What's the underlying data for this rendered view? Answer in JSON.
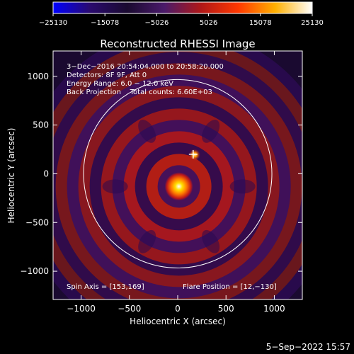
{
  "chart_data": {
    "type": "heatmap",
    "title": "Reconstructed RHESSI Image",
    "xlabel": "Heliocentric X (arcsec)",
    "ylabel": "Heliocentric Y (arcsec)",
    "xlim": [
      -1290,
      1290
    ],
    "ylim": [
      -1290,
      1260
    ],
    "x_ticks": [
      -1000,
      -500,
      0,
      500,
      1000
    ],
    "x_tick_labels": [
      "−1000",
      "−500",
      "0",
      "500",
      "1000"
    ],
    "y_ticks": [
      -1000,
      -500,
      0,
      500,
      1000
    ],
    "y_tick_labels": [
      "−1000",
      "−500",
      "0",
      "500",
      "1000"
    ],
    "colorbar": {
      "min": -25130,
      "max": 25130,
      "ticks": [
        -25130,
        -15078,
        -5026,
        5026,
        15078,
        25130
      ],
      "tick_labels": [
        "−25130",
        "−15078",
        "−5026",
        "5026",
        "15078",
        "25130"
      ],
      "colors": [
        "#0000ff",
        "#2a0a6e",
        "#1a0a30",
        "#4a1a6a",
        "#b01818",
        "#ff3800",
        "#ffb000",
        "#ffffff"
      ]
    },
    "annotations": [
      "3−Dec−2016 20:54:04.000 to 20:58:20.000",
      "Detectors: 8F 9F, Att 0",
      "Energy Range: 6.0 − 12.0 keV",
      "Back Projection    Total counts: 6.60E+03",
      "Spin Axis = [153,169]",
      "Flare Position = [12,−130]"
    ],
    "solar_disk": {
      "center": [
        0,
        0
      ],
      "radius": 975,
      "color": "#ffffff"
    },
    "marker": {
      "x": 160,
      "y": 200,
      "symbol": "+"
    },
    "sources": [
      {
        "x": 12,
        "y": -130,
        "peak_fraction": 1.0
      },
      {
        "x": 175,
        "y": 195,
        "peak_fraction": 0.7
      }
    ],
    "background": "#000000"
  },
  "timestamp": "5−Sep−2022 15:57"
}
